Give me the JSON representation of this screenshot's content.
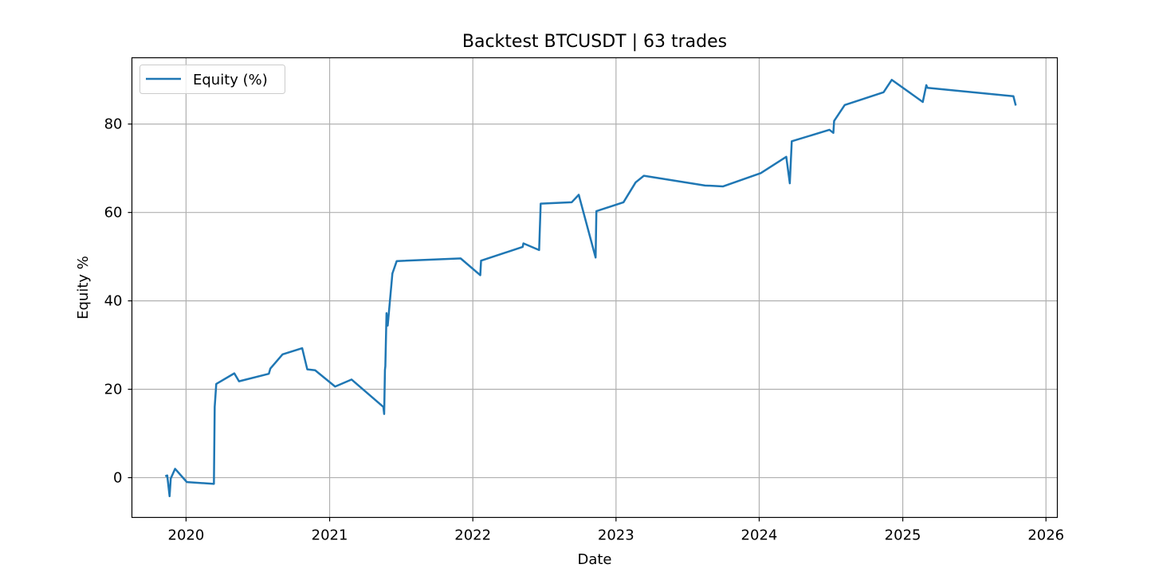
{
  "chart_data": {
    "type": "line",
    "title": "Backtest BTCUSDT | 63 trades",
    "xlabel": "Date",
    "ylabel": "Equity %",
    "x_ticks": [
      "2020",
      "2021",
      "2022",
      "2023",
      "2024",
      "2025",
      "2026"
    ],
    "y_ticks": [
      0,
      20,
      40,
      60,
      80
    ],
    "xlim": [
      "2019-08-16",
      "2026-01-30"
    ],
    "ylim": [
      -9,
      95
    ],
    "grid": true,
    "legend_placement": "top-left",
    "series": [
      {
        "name": "Equity (%)",
        "color": "#1f77b4",
        "points": [
          [
            "2019-11-09",
            0.3
          ],
          [
            "2019-11-14",
            0.5
          ],
          [
            "2019-11-20",
            -4.2
          ],
          [
            "2019-11-23",
            -0.2
          ],
          [
            "2019-12-04",
            2.0
          ],
          [
            "2020-01-03",
            -1.0
          ],
          [
            "2020-03-12",
            -1.4
          ],
          [
            "2020-03-14",
            16.0
          ],
          [
            "2020-03-18",
            21.2
          ],
          [
            "2020-05-03",
            23.6
          ],
          [
            "2020-05-15",
            21.8
          ],
          [
            "2020-07-30",
            23.5
          ],
          [
            "2020-08-03",
            24.7
          ],
          [
            "2020-09-03",
            27.9
          ],
          [
            "2020-10-23",
            29.3
          ],
          [
            "2020-11-05",
            24.5
          ],
          [
            "2020-11-25",
            24.3
          ],
          [
            "2021-01-15",
            20.6
          ],
          [
            "2021-02-26",
            22.2
          ],
          [
            "2021-05-18",
            16.0
          ],
          [
            "2021-05-20",
            14.4
          ],
          [
            "2021-05-22",
            24.4
          ],
          [
            "2021-05-23",
            25.2
          ],
          [
            "2021-05-26",
            37.2
          ],
          [
            "2021-05-29",
            34.4
          ],
          [
            "2021-06-10",
            46.2
          ],
          [
            "2021-06-21",
            49.0
          ],
          [
            "2021-12-01",
            49.6
          ],
          [
            "2022-01-20",
            45.8
          ],
          [
            "2022-01-22",
            49.1
          ],
          [
            "2022-05-08",
            52.2
          ],
          [
            "2022-05-10",
            53.0
          ],
          [
            "2022-06-19",
            51.5
          ],
          [
            "2022-06-23",
            62.0
          ],
          [
            "2022-09-10",
            62.3
          ],
          [
            "2022-09-28",
            64.0
          ],
          [
            "2022-11-10",
            49.8
          ],
          [
            "2022-11-12",
            60.3
          ],
          [
            "2023-01-20",
            62.3
          ],
          [
            "2023-02-20",
            66.8
          ],
          [
            "2023-03-13",
            68.3
          ],
          [
            "2023-08-16",
            66.1
          ],
          [
            "2023-10-01",
            65.9
          ],
          [
            "2024-01-05",
            68.9
          ],
          [
            "2024-03-10",
            72.6
          ],
          [
            "2024-03-19",
            66.6
          ],
          [
            "2024-03-24",
            76.1
          ],
          [
            "2024-06-28",
            78.7
          ],
          [
            "2024-07-08",
            78.0
          ],
          [
            "2024-07-10",
            80.7
          ],
          [
            "2024-08-06",
            84.3
          ],
          [
            "2024-11-13",
            87.2
          ],
          [
            "2024-12-04",
            90.0
          ],
          [
            "2025-02-21",
            85.0
          ],
          [
            "2025-03-02",
            88.8
          ],
          [
            "2025-03-05",
            88.2
          ],
          [
            "2025-10-10",
            86.3
          ],
          [
            "2025-10-16",
            84.2
          ]
        ]
      }
    ]
  }
}
